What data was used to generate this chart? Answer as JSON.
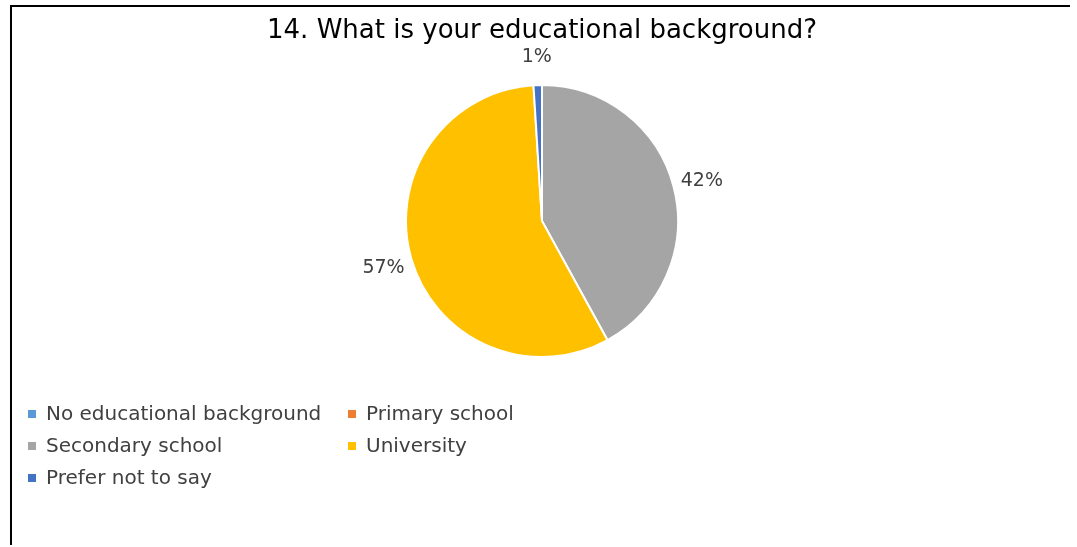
{
  "chart_data": {
    "type": "pie",
    "title": "14. What is your educational background?",
    "categories": [
      "No educational background",
      "Primary school",
      "Secondary school",
      "University",
      "Prefer not to say"
    ],
    "values": [
      0,
      0,
      42,
      57,
      1
    ],
    "colors": [
      "#5b9bd5",
      "#ed7d31",
      "#a5a5a5",
      "#ffc000",
      "#4472c4"
    ],
    "value_labels": [
      null,
      null,
      "42%",
      "57%",
      "1%"
    ],
    "legend": "bottom"
  }
}
